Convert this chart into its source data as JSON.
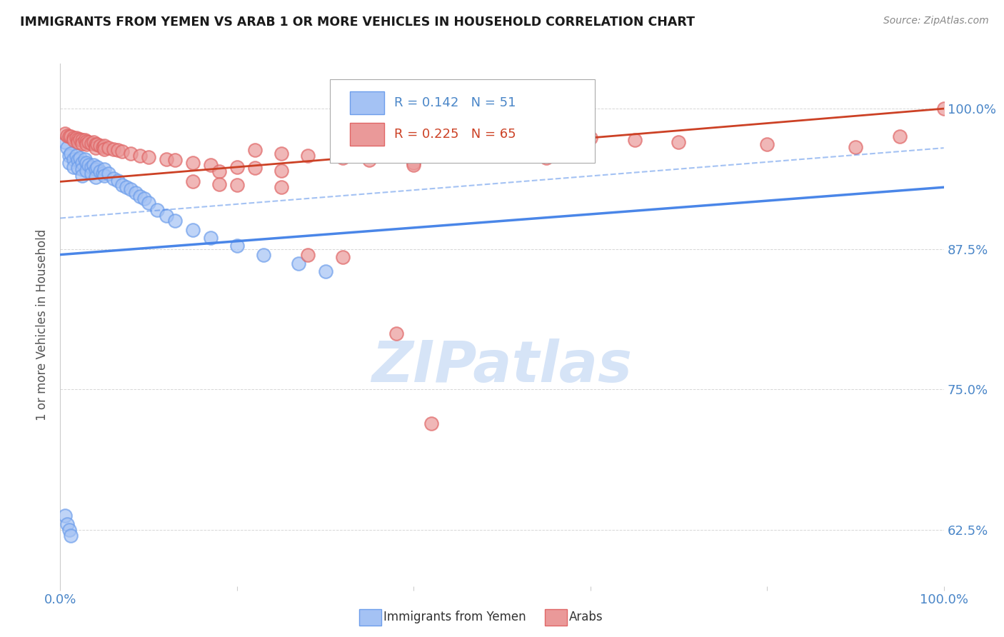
{
  "title": "IMMIGRANTS FROM YEMEN VS ARAB 1 OR MORE VEHICLES IN HOUSEHOLD CORRELATION CHART",
  "source": "Source: ZipAtlas.com",
  "ylabel": "1 or more Vehicles in Household",
  "xlim": [
    0.0,
    1.0
  ],
  "ylim": [
    0.575,
    1.04
  ],
  "yticks": [
    0.625,
    0.75,
    0.875,
    1.0
  ],
  "ytick_labels": [
    "62.5%",
    "75.0%",
    "87.5%",
    "100.0%"
  ],
  "xticks": [
    0.0,
    0.2,
    0.4,
    0.6,
    0.8,
    1.0
  ],
  "xtick_labels": [
    "0.0%",
    "",
    "",
    "",
    "",
    "100.0%"
  ],
  "r1": "0.142",
  "n1": "51",
  "r2": "0.225",
  "n2": "65",
  "color_blue_fill": "#a4c2f4",
  "color_blue_edge": "#6d9eeb",
  "color_pink_fill": "#ea9999",
  "color_pink_edge": "#e06666",
  "color_line_blue": "#4a86e8",
  "color_line_pink": "#cc4125",
  "color_axis_labels": "#4a86c8",
  "color_grid": "#cccccc",
  "watermark_color": "#d6e4f7",
  "blue_x": [
    0.005,
    0.008,
    0.01,
    0.01,
    0.012,
    0.015,
    0.015,
    0.018,
    0.02,
    0.02,
    0.022,
    0.025,
    0.025,
    0.025,
    0.028,
    0.03,
    0.03,
    0.032,
    0.035,
    0.035,
    0.038,
    0.04,
    0.04,
    0.042,
    0.045,
    0.048,
    0.05,
    0.05,
    0.055,
    0.06,
    0.065,
    0.07,
    0.075,
    0.08,
    0.085,
    0.09,
    0.095,
    0.1,
    0.11,
    0.12,
    0.13,
    0.15,
    0.17,
    0.2,
    0.23,
    0.27,
    0.3,
    0.005,
    0.008,
    0.01,
    0.012
  ],
  "blue_y": [
    0.97,
    0.965,
    0.958,
    0.952,
    0.96,
    0.955,
    0.948,
    0.958,
    0.954,
    0.947,
    0.956,
    0.952,
    0.946,
    0.94,
    0.955,
    0.952,
    0.945,
    0.95,
    0.948,
    0.942,
    0.95,
    0.946,
    0.939,
    0.948,
    0.944,
    0.942,
    0.946,
    0.94,
    0.942,
    0.938,
    0.936,
    0.932,
    0.93,
    0.928,
    0.925,
    0.922,
    0.92,
    0.916,
    0.91,
    0.905,
    0.9,
    0.892,
    0.885,
    0.878,
    0.87,
    0.862,
    0.855,
    0.638,
    0.63,
    0.625,
    0.62
  ],
  "pink_x": [
    0.005,
    0.008,
    0.01,
    0.012,
    0.015,
    0.015,
    0.018,
    0.02,
    0.02,
    0.022,
    0.025,
    0.025,
    0.028,
    0.03,
    0.03,
    0.032,
    0.035,
    0.038,
    0.04,
    0.04,
    0.042,
    0.045,
    0.048,
    0.05,
    0.05,
    0.055,
    0.06,
    0.065,
    0.07,
    0.08,
    0.09,
    0.1,
    0.12,
    0.13,
    0.15,
    0.17,
    0.2,
    0.22,
    0.25,
    0.18,
    0.22,
    0.25,
    0.28,
    0.32,
    0.35,
    0.4,
    0.45,
    0.5,
    0.55,
    0.6,
    0.65,
    0.7,
    0.8,
    0.9,
    0.95,
    1.0,
    0.38,
    0.28,
    0.32,
    0.4,
    0.42,
    0.15,
    0.18,
    0.2,
    0.25
  ],
  "pink_y": [
    0.978,
    0.976,
    0.975,
    0.975,
    0.974,
    0.972,
    0.974,
    0.973,
    0.97,
    0.973,
    0.972,
    0.969,
    0.972,
    0.971,
    0.968,
    0.97,
    0.969,
    0.97,
    0.968,
    0.965,
    0.968,
    0.967,
    0.966,
    0.967,
    0.964,
    0.965,
    0.964,
    0.963,
    0.962,
    0.96,
    0.958,
    0.957,
    0.955,
    0.954,
    0.952,
    0.95,
    0.948,
    0.947,
    0.945,
    0.944,
    0.963,
    0.96,
    0.958,
    0.956,
    0.954,
    0.952,
    0.96,
    0.958,
    0.956,
    0.974,
    0.972,
    0.97,
    0.968,
    0.966,
    0.975,
    1.0,
    0.8,
    0.87,
    0.868,
    0.95,
    0.72,
    0.935,
    0.933,
    0.932,
    0.93
  ]
}
